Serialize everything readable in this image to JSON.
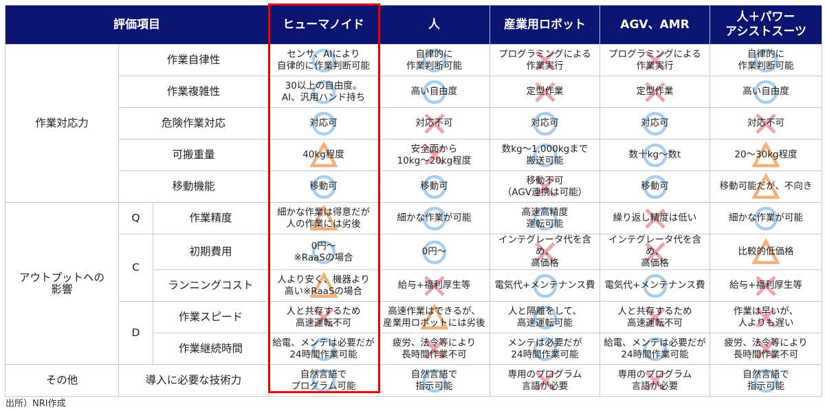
{
  "header": {
    "item_label": "評価項目",
    "columns": [
      "ヒューマノイド",
      "人",
      "産業用ロボット",
      "AGV、AMR",
      "人＋パワー\nアシストスーツ"
    ]
  },
  "groups": {
    "g1": "作業対応力",
    "g2": "アウトプットへの\n影響",
    "g3": "その他"
  },
  "marks": {
    "O": {
      "icon": "circle-icon",
      "color": "#a9cfee"
    },
    "X": {
      "icon": "cross-icon",
      "color": "#eea4a8"
    },
    "T": {
      "icon": "triangle-icon",
      "color": "#f4b07a"
    }
  },
  "rows": [
    {
      "group": "g1",
      "qcd": null,
      "item": "作業自律性",
      "cells": [
        {
          "text": "センサ、AIにより\n自律的に作業判断可能",
          "mark": "O"
        },
        {
          "text": "自律的に\n作業判断可能",
          "mark": "O"
        },
        {
          "text": "プログラミングによる\n作業実行",
          "mark": "X"
        },
        {
          "text": "プログラミングによる\n作業実行",
          "mark": "X"
        },
        {
          "text": "自律的に\n作業判断可能",
          "mark": "O"
        }
      ]
    },
    {
      "group": "g1",
      "qcd": null,
      "item": "作業複雑性",
      "cells": [
        {
          "text": "30以上の自由度。\nAI、汎用ハンド持ち",
          "mark": "O"
        },
        {
          "text": "高い自由度",
          "mark": "O"
        },
        {
          "text": "定型作業",
          "mark": "X"
        },
        {
          "text": "定型作業",
          "mark": "X"
        },
        {
          "text": "高い自由度",
          "mark": "O"
        }
      ]
    },
    {
      "group": "g1",
      "qcd": null,
      "item": "危険作業対応",
      "cells": [
        {
          "text": "対応可",
          "mark": "O"
        },
        {
          "text": "対応不可",
          "mark": "X"
        },
        {
          "text": "対応可",
          "mark": "O"
        },
        {
          "text": "対応可",
          "mark": "O"
        },
        {
          "text": "対応不可",
          "mark": "X"
        }
      ]
    },
    {
      "group": "g1",
      "qcd": null,
      "item": "可搬重量",
      "cells": [
        {
          "text": "40kg程度",
          "mark": "T"
        },
        {
          "text": "安全面から\n10kg～20kg程度",
          "mark": "X"
        },
        {
          "text": "数kg～1,000kgまで\n搬送可能",
          "mark": "O"
        },
        {
          "text": "数十kg～数t",
          "mark": "O"
        },
        {
          "text": "20～30kg程度",
          "mark": "T"
        }
      ]
    },
    {
      "group": "g1",
      "qcd": null,
      "item": "移動機能",
      "cells": [
        {
          "text": "移動可",
          "mark": "O"
        },
        {
          "text": "移動可",
          "mark": "O"
        },
        {
          "text": "移動不可\n（AGV連携は可能）",
          "mark": "X"
        },
        {
          "text": "移動可",
          "mark": "O"
        },
        {
          "text": "移動可能だが、不向き",
          "mark": "T"
        }
      ]
    },
    {
      "group": "g2",
      "qcd": "Q",
      "item": "作業精度",
      "cells": [
        {
          "text": "細かな作業は得意だが\n人の作業には劣後",
          "mark": "T"
        },
        {
          "text": "細かな作業が可能",
          "mark": "O"
        },
        {
          "text": "高速高精度\n運転可能",
          "mark": "O"
        },
        {
          "text": "繰り返し精度は低い",
          "mark": "X"
        },
        {
          "text": "細かな作業が可能",
          "mark": "O"
        }
      ]
    },
    {
      "group": "g2",
      "qcd": "C",
      "item": "初期費用",
      "cells": [
        {
          "text": "0円～\n※RaaSの場合",
          "mark": "O"
        },
        {
          "text": "0円～",
          "mark": "O"
        },
        {
          "text": "インテグレータ代を含め、\n高価格",
          "mark": "X"
        },
        {
          "text": "インテグレータ代を含め、\n高価格",
          "mark": "X"
        },
        {
          "text": "比較的低価格",
          "mark": "T"
        }
      ]
    },
    {
      "group": "g2",
      "qcd": "C",
      "item": "ランニングコスト",
      "cells": [
        {
          "text": "人より安く、機器より\n高い※RaaSの場合",
          "mark": "T"
        },
        {
          "text": "給与+福利厚生等",
          "mark": "X"
        },
        {
          "text": "電気代+メンテナンス費",
          "mark": "O"
        },
        {
          "text": "電気代+メンテナンス費",
          "mark": "O"
        },
        {
          "text": "給与+福利厚生等",
          "mark": "X"
        }
      ]
    },
    {
      "group": "g2",
      "qcd": "D",
      "item": "作業スピード",
      "cells": [
        {
          "text": "人と共存するため\n高速運転不可",
          "mark": "X"
        },
        {
          "text": "高速作業はできるが、\n産業用ロボットには劣後",
          "mark": "T"
        },
        {
          "text": "人と隔離をして、\n高速運転可能",
          "mark": "O"
        },
        {
          "text": "人と共存するため\n高速運転不可",
          "mark": "X"
        },
        {
          "text": "作業は早いが、\n人よりも遅い",
          "mark": "X"
        }
      ]
    },
    {
      "group": "g2",
      "qcd": "D",
      "item": "作業継続時間",
      "cells": [
        {
          "text": "給電、メンテは必要だが\n24時間作業可能",
          "mark": "O"
        },
        {
          "text": "疲労、法令等により\n長時間作業不可",
          "mark": "X"
        },
        {
          "text": "メンテは必要だが\n24時間作業可能",
          "mark": "O"
        },
        {
          "text": "給電、メンテは必要だが\n24時間作業可能",
          "mark": "O"
        },
        {
          "text": "疲労、法令等により\n長時間作業不可",
          "mark": "X"
        }
      ]
    },
    {
      "group": "g3",
      "qcd": null,
      "item": "導入に必要な技術力",
      "cells": [
        {
          "text": "自然言語で\nプログラム可能",
          "mark": "O"
        },
        {
          "text": "自然言語で\n指示可能",
          "mark": "O"
        },
        {
          "text": "専用のプログラム\n言語が必要",
          "mark": "X"
        },
        {
          "text": "専用のプログラム\n言語が必要",
          "mark": "X"
        },
        {
          "text": "自然言語で\n指示可能",
          "mark": "O"
        }
      ]
    }
  ],
  "source": "出所）NRI作成"
}
